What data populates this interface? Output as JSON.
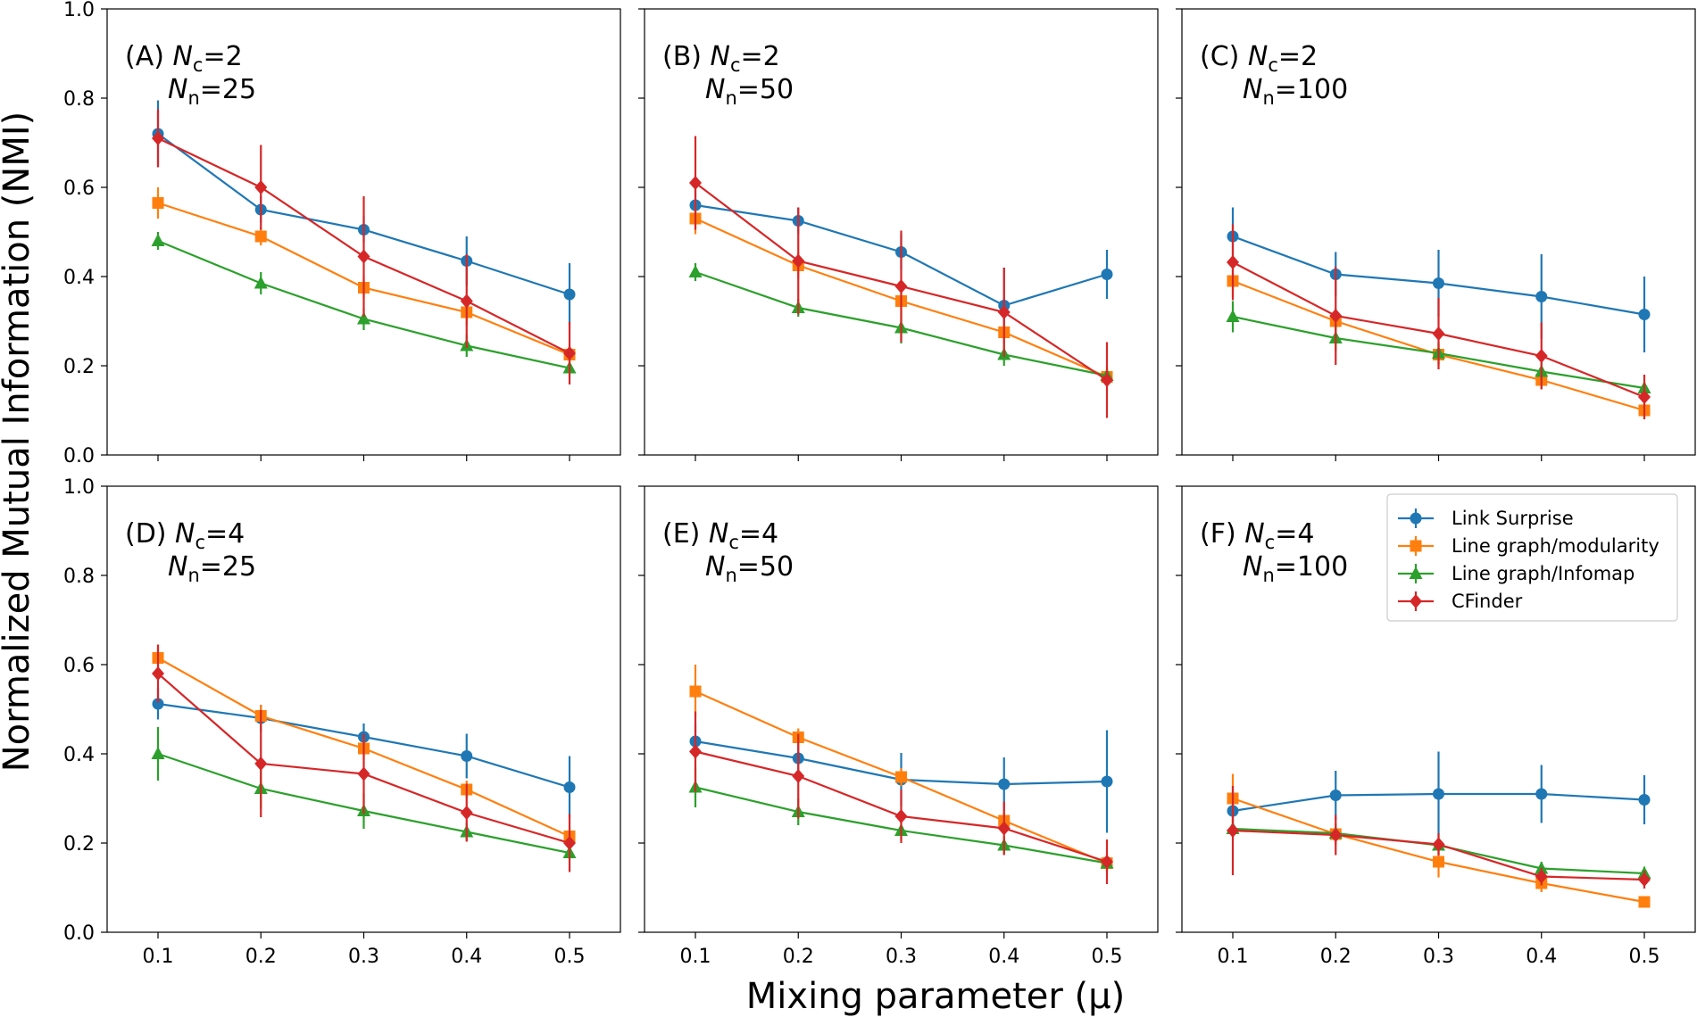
{
  "chart_data": {
    "type": "line",
    "xlabel": "Mixing parameter (μ)",
    "ylabel": "Normalized Mutual Information (NMI)",
    "x": [
      0.1,
      0.2,
      0.3,
      0.4,
      0.5
    ],
    "x_tick_labels": [
      "0.1",
      "0.2",
      "0.3",
      "0.4",
      "0.5"
    ],
    "ylim": [
      0,
      1
    ],
    "y_tick_labels": [
      "0.0",
      "0.2",
      "0.4",
      "0.6",
      "0.8",
      "1.0"
    ],
    "legend_placement": "top-right of panel F",
    "series_styles": [
      {
        "name": "Link Surprise",
        "color": "#1f77b4",
        "marker": "circle"
      },
      {
        "name": "Line graph/modularity",
        "color": "#ff7f0e",
        "marker": "square"
      },
      {
        "name": "Line graph/Infomap",
        "color": "#2ca02c",
        "marker": "triangle"
      },
      {
        "name": "CFinder",
        "color": "#d62728",
        "marker": "diamond"
      }
    ],
    "panels": [
      {
        "id": "A",
        "letter": "(A)",
        "nc_value": "=2",
        "nn_value": "=25",
        "series": [
          {
            "name": "Link Surprise",
            "values": [
              0.72,
              0.55,
              0.505,
              0.435,
              0.36
            ],
            "errors": [
              0.075,
              0.03,
              0.03,
              0.055,
              0.07
            ]
          },
          {
            "name": "Line graph/modularity",
            "values": [
              0.565,
              0.49,
              0.375,
              0.32,
              0.225
            ],
            "errors": [
              0.035,
              0.02,
              0.025,
              0.03,
              0.02
            ]
          },
          {
            "name": "Line graph/Infomap",
            "values": [
              0.48,
              0.385,
              0.305,
              0.245,
              0.195
            ],
            "errors": [
              0.02,
              0.025,
              0.025,
              0.025,
              0.02
            ]
          },
          {
            "name": "CFinder",
            "values": [
              0.71,
              0.6,
              0.445,
              0.345,
              0.228
            ],
            "errors": [
              0.065,
              0.095,
              0.135,
              0.105,
              0.07
            ]
          }
        ]
      },
      {
        "id": "B",
        "letter": "(B)",
        "nc_value": "=2",
        "nn_value": "=50",
        "series": [
          {
            "name": "Link Surprise",
            "values": [
              0.56,
              0.525,
              0.455,
              0.335,
              0.405
            ],
            "errors": [
              0.035,
              0.03,
              0.04,
              0.085,
              0.055
            ]
          },
          {
            "name": "Line graph/modularity",
            "values": [
              0.53,
              0.425,
              0.345,
              0.275,
              0.175
            ],
            "errors": [
              0.035,
              0.03,
              0.025,
              0.02,
              0.015
            ]
          },
          {
            "name": "Line graph/Infomap",
            "values": [
              0.41,
              0.33,
              0.285,
              0.225,
              0.178
            ],
            "errors": [
              0.02,
              0.02,
              0.035,
              0.025,
              0.02
            ]
          },
          {
            "name": "CFinder",
            "values": [
              0.61,
              0.435,
              0.378,
              0.32,
              0.168
            ],
            "errors": [
              0.105,
              0.12,
              0.125,
              0.1,
              0.085
            ]
          }
        ]
      },
      {
        "id": "C",
        "letter": "(C)",
        "nc_value": "=2",
        "nn_value": "=100",
        "series": [
          {
            "name": "Link Surprise",
            "values": [
              0.49,
              0.405,
              0.385,
              0.355,
              0.315
            ],
            "errors": [
              0.065,
              0.05,
              0.075,
              0.095,
              0.085
            ]
          },
          {
            "name": "Line graph/modularity",
            "values": [
              0.39,
              0.3,
              0.225,
              0.168,
              0.1
            ],
            "errors": [
              0.035,
              0.03,
              0.025,
              0.02,
              0.015
            ]
          },
          {
            "name": "Line graph/Infomap",
            "values": [
              0.31,
              0.262,
              0.228,
              0.187,
              0.15
            ],
            "errors": [
              0.035,
              0.03,
              0.025,
              0.02,
              0.015
            ]
          },
          {
            "name": "CFinder",
            "values": [
              0.432,
              0.312,
              0.272,
              0.222,
              0.13
            ],
            "errors": [
              0.085,
              0.11,
              0.08,
              0.075,
              0.05
            ]
          }
        ]
      },
      {
        "id": "D",
        "letter": "(D)",
        "nc_value": "=4",
        "nn_value": "=25",
        "series": [
          {
            "name": "Link Surprise",
            "values": [
              0.512,
              0.48,
              0.438,
              0.395,
              0.325
            ],
            "errors": [
              0.035,
              0.03,
              0.03,
              0.05,
              0.07
            ]
          },
          {
            "name": "Line graph/modularity",
            "values": [
              0.615,
              0.485,
              0.412,
              0.32,
              0.215
            ],
            "errors": [
              0.03,
              0.025,
              0.025,
              0.02,
              0.02
            ]
          },
          {
            "name": "Line graph/Infomap",
            "values": [
              0.4,
              0.322,
              0.272,
              0.225,
              0.178
            ],
            "errors": [
              0.06,
              0.045,
              0.04,
              0.02,
              0.015
            ]
          },
          {
            "name": "CFinder",
            "values": [
              0.58,
              0.378,
              0.355,
              0.268,
              0.2
            ],
            "errors": [
              0.065,
              0.12,
              0.09,
              0.065,
              0.065
            ]
          }
        ]
      },
      {
        "id": "E",
        "letter": "(E)",
        "nc_value": "=4",
        "nn_value": "=50",
        "series": [
          {
            "name": "Link Surprise",
            "values": [
              0.428,
              0.39,
              0.342,
              0.332,
              0.338
            ],
            "errors": [
              0.04,
              0.035,
              0.06,
              0.06,
              0.115
            ]
          },
          {
            "name": "Line graph/modularity",
            "values": [
              0.54,
              0.437,
              0.348,
              0.25,
              0.155
            ],
            "errors": [
              0.06,
              0.02,
              0.02,
              0.02,
              0.02
            ]
          },
          {
            "name": "Line graph/Infomap",
            "values": [
              0.325,
              0.27,
              0.228,
              0.195,
              0.155
            ],
            "errors": [
              0.045,
              0.03,
              0.02,
              0.02,
              0.015
            ]
          },
          {
            "name": "CFinder",
            "values": [
              0.405,
              0.35,
              0.26,
              0.233,
              0.158
            ],
            "errors": [
              0.09,
              0.095,
              0.06,
              0.06,
              0.05
            ]
          }
        ]
      },
      {
        "id": "F",
        "letter": "(F)",
        "nc_value": "=4",
        "nn_value": "=100",
        "series": [
          {
            "name": "Link Surprise",
            "values": [
              0.272,
              0.307,
              0.31,
              0.31,
              0.297
            ],
            "errors": [
              0.025,
              0.055,
              0.095,
              0.065,
              0.055
            ]
          },
          {
            "name": "Line graph/modularity",
            "values": [
              0.3,
              0.22,
              0.158,
              0.11,
              0.068
            ],
            "errors": [
              0.055,
              0.025,
              0.035,
              0.02,
              0.01
            ]
          },
          {
            "name": "Line graph/Infomap",
            "values": [
              0.232,
              0.222,
              0.195,
              0.143,
              0.132
            ],
            "errors": [
              0.02,
              0.02,
              0.02,
              0.015,
              0.015
            ]
          },
          {
            "name": "CFinder",
            "values": [
              0.228,
              0.218,
              0.197,
              0.125,
              0.118
            ],
            "errors": [
              0.1,
              0.045,
              0.025,
              0.02,
              0.02
            ]
          }
        ]
      }
    ]
  }
}
